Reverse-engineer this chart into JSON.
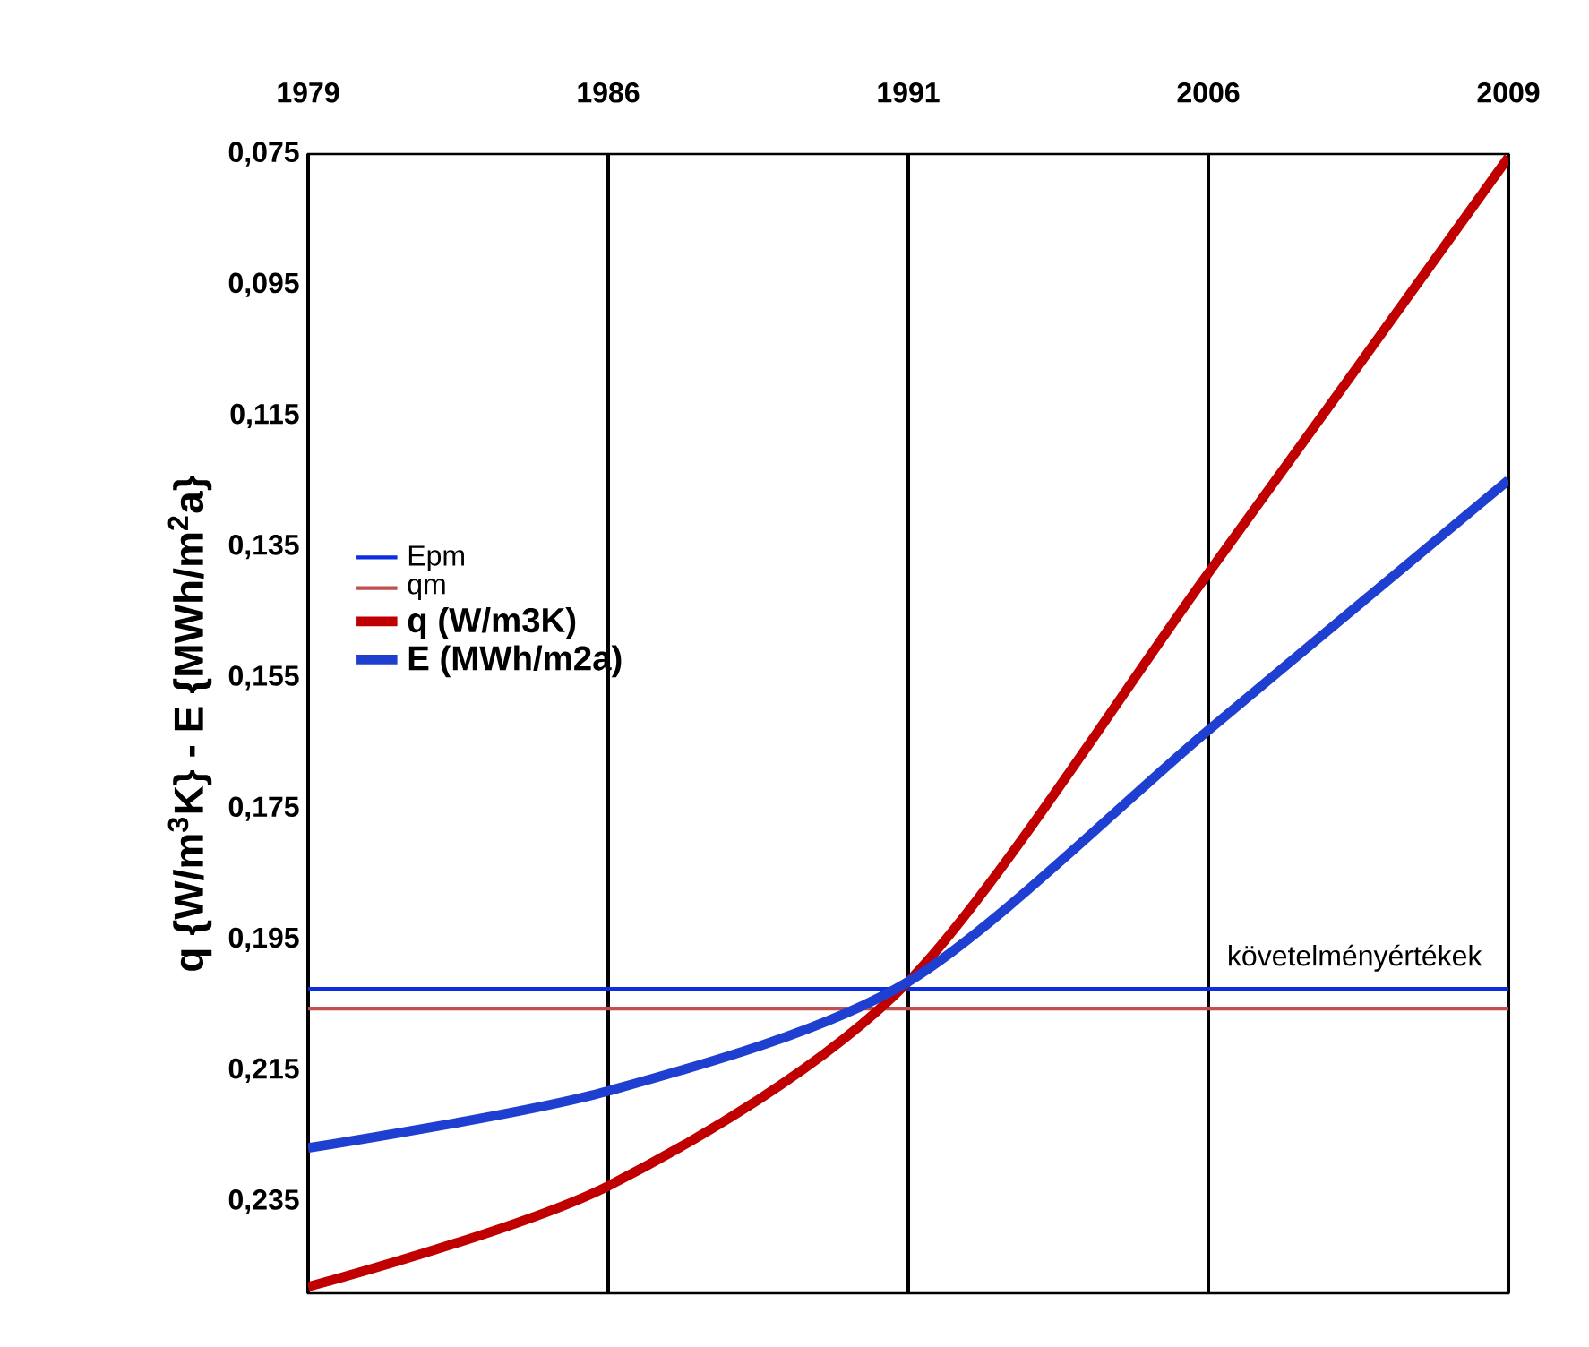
{
  "chart_data": {
    "type": "line",
    "categories": [
      "1979",
      "1986",
      "1991",
      "2006",
      "2009"
    ],
    "ylabel": "q {W/m$^{3}$K}  -  E {MWh/m$^{2}$a}",
    "series": [
      {
        "name": "Epm",
        "color": "#0a2ee0",
        "values": [
          0.2025,
          0.2025,
          0.2025,
          0.2025,
          0.2025
        ]
      },
      {
        "name": "qm",
        "color": "#c0504d",
        "values": [
          0.2055,
          0.2055,
          0.2055,
          0.2055,
          0.2055
        ]
      },
      {
        "name": "q (W/m3K)",
        "color": "#c00000",
        "values": [
          0.248,
          0.2326,
          0.2014,
          0.139,
          0.0755
        ]
      },
      {
        "name": "E (MWh/m2a)",
        "color": "#1f3fd0",
        "values": [
          0.2268,
          0.2181,
          0.2014,
          0.163,
          0.1248
        ]
      }
    ],
    "ylim": [
      0.249,
      0.075
    ],
    "yticks": [
      {
        "value": 0.075,
        "label": "0,075"
      },
      {
        "value": 0.095,
        "label": "0,095"
      },
      {
        "value": 0.115,
        "label": "0,115"
      },
      {
        "value": 0.135,
        "label": "0,135"
      },
      {
        "value": 0.155,
        "label": "0,155"
      },
      {
        "value": 0.175,
        "label": "0,175"
      },
      {
        "value": 0.195,
        "label": "0,195"
      },
      {
        "value": 0.215,
        "label": "0,215"
      },
      {
        "value": 0.235,
        "label": "0,235"
      }
    ],
    "grid": "x",
    "legend": "left",
    "marker": "none",
    "line_style": "solid",
    "annotations": [
      "követelményértékek"
    ]
  }
}
